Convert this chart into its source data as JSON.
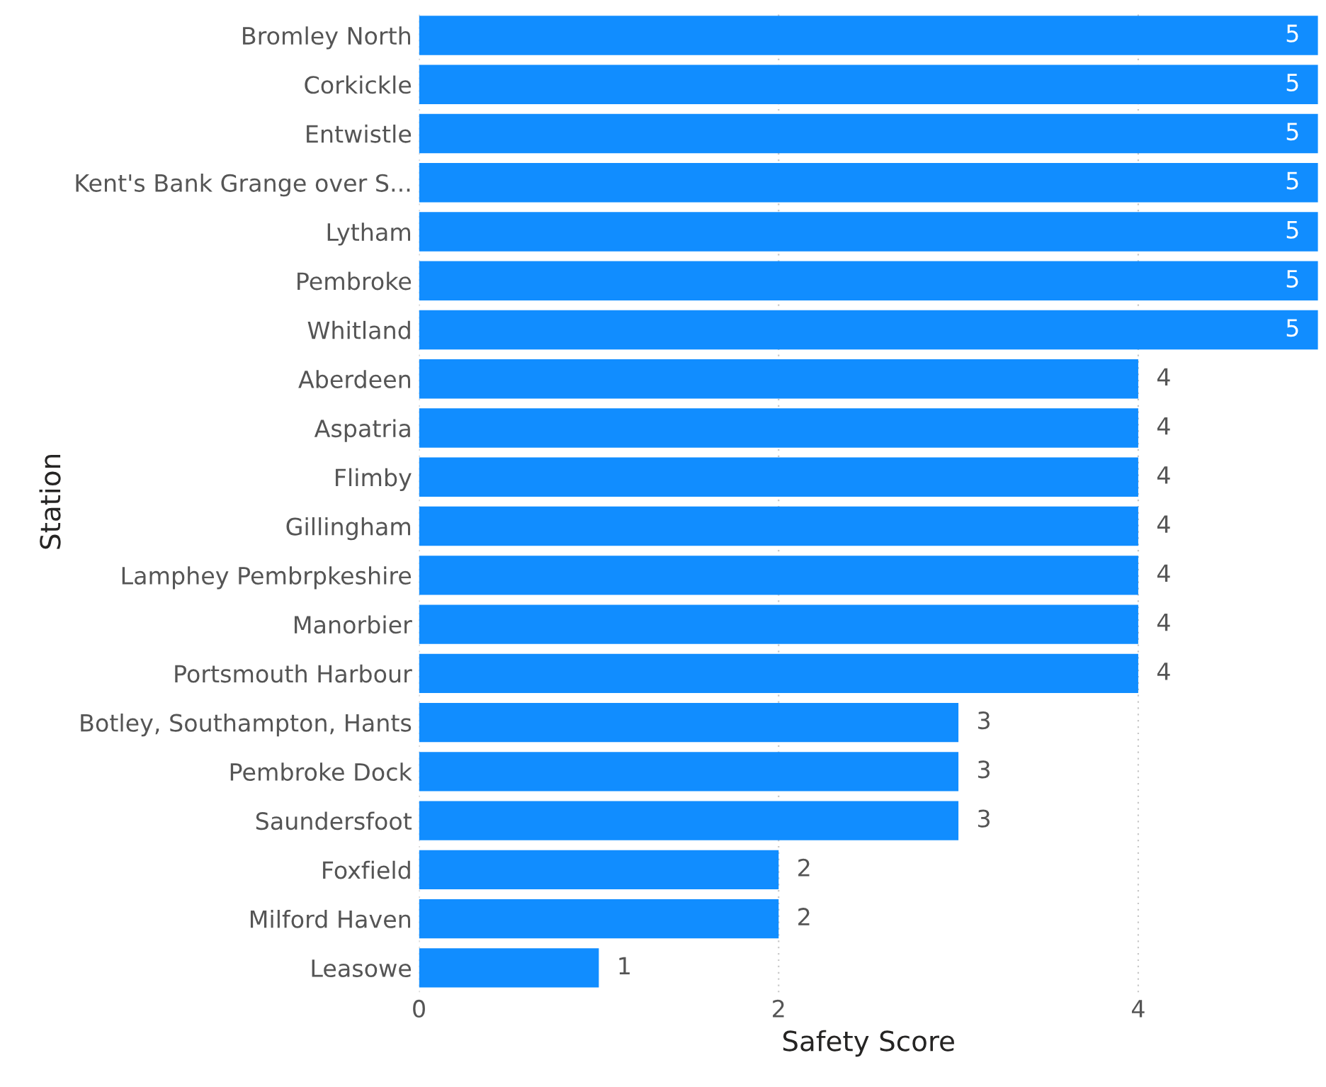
{
  "chart_data": {
    "type": "bar",
    "orientation": "horizontal",
    "xlabel": "Safety Score",
    "ylabel": "Station",
    "categories": [
      "Bromley North",
      "Corkickle",
      "Entwistle",
      "Kent's Bank Grange over S...",
      "Lytham",
      "Pembroke",
      "Whitland",
      "Aberdeen",
      "Aspatria",
      "Flimby",
      "Gillingham",
      "Lamphey Pembrpkeshire",
      "Manorbier",
      "Portsmouth Harbour",
      "Botley, Southampton, Hants",
      "Pembroke Dock",
      "Saundersfoot",
      "Foxfield",
      "Milford Haven",
      "Leasowe"
    ],
    "values": [
      5,
      5,
      5,
      5,
      5,
      5,
      5,
      4,
      4,
      4,
      4,
      4,
      4,
      4,
      3,
      3,
      3,
      2,
      2,
      1
    ],
    "color": "#118dff",
    "xlim": [
      0,
      5
    ],
    "xticks": [
      0,
      2,
      4
    ],
    "grid": "x",
    "data_labels": true
  }
}
